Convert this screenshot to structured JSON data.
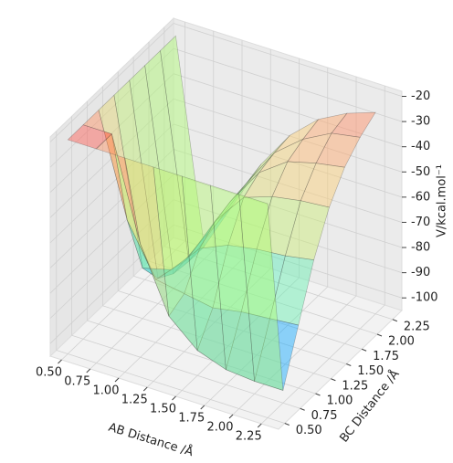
{
  "chart_data": {
    "type": "surface",
    "xlabel": "AB Distance /Å",
    "ylabel": "BC Distance /Å",
    "zlabel": "V/kcal.mol⁻¹",
    "x": [
      0.5,
      0.75,
      1.0,
      1.25,
      1.5,
      1.75,
      2.0,
      2.25
    ],
    "y": [
      0.5,
      0.75,
      1.0,
      1.25,
      1.5,
      1.75,
      2.0,
      2.25
    ],
    "z": [
      [
        -20,
        -20,
        -20,
        -20,
        -20,
        -20,
        -20,
        -20
      ],
      [
        -20,
        -20,
        -60,
        -85,
        -95,
        -99,
        -100,
        -100
      ],
      [
        -20,
        -60,
        -80,
        -82,
        -84,
        -82,
        -81,
        -80
      ],
      [
        -20,
        -85,
        -82,
        -70,
        -65,
        -63,
        -62,
        -60
      ],
      [
        -20,
        -95,
        -84,
        -65,
        -52,
        -48,
        -46,
        -45
      ],
      [
        -20,
        -99,
        -82,
        -63,
        -48,
        -40,
        -37,
        -35
      ],
      [
        -20,
        -100,
        -81,
        -62,
        -46,
        -37,
        -31,
        -29
      ],
      [
        -20,
        -100,
        -80,
        -60,
        -45,
        -35,
        -29,
        -25
      ]
    ],
    "xlim": [
      0.4,
      2.4
    ],
    "ylim": [
      0.4,
      2.4
    ],
    "zlim": [
      -105,
      -18
    ],
    "xticks": [
      {
        "value": 0.5,
        "label": "0.50"
      },
      {
        "value": 0.75,
        "label": "0.75"
      },
      {
        "value": 1.0,
        "label": "1.00"
      },
      {
        "value": 1.25,
        "label": "1.25"
      },
      {
        "value": 1.5,
        "label": "1.50"
      },
      {
        "value": 1.75,
        "label": "1.75"
      },
      {
        "value": 2.0,
        "label": "2.00"
      },
      {
        "value": 2.25,
        "label": "2.25"
      }
    ],
    "yticks": [
      {
        "value": 0.5,
        "label": "0.50"
      },
      {
        "value": 0.75,
        "label": "0.75"
      },
      {
        "value": 1.0,
        "label": "1.00"
      },
      {
        "value": 1.25,
        "label": "1.25"
      },
      {
        "value": 1.5,
        "label": "1.50"
      },
      {
        "value": 1.75,
        "label": "1.75"
      },
      {
        "value": 2.0,
        "label": "2.00"
      },
      {
        "value": 2.25,
        "label": "2.25"
      }
    ],
    "zticks": [
      -20,
      -30,
      -40,
      -50,
      -60,
      -70,
      -80,
      -90,
      -100
    ],
    "colormap": [
      "#2040ff",
      "#00d8ff",
      "#a8ff70",
      "#ffc870",
      "#ff5050"
    ],
    "alpha": 0.45,
    "grid": true
  }
}
